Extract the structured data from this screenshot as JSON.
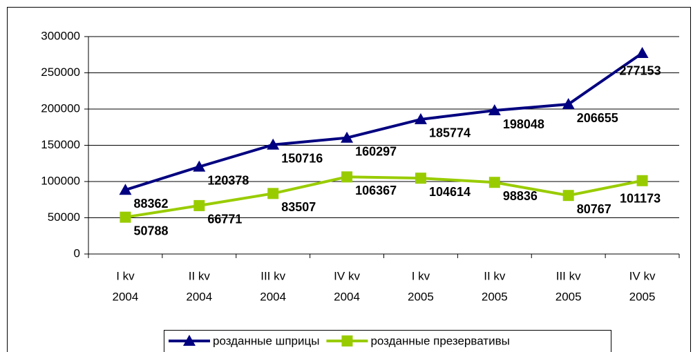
{
  "chart_data": {
    "type": "line",
    "categories": [
      [
        "I kv",
        "2004"
      ],
      [
        "II kv",
        "2004"
      ],
      [
        "III kv",
        "2004"
      ],
      [
        "IV kv",
        "2004"
      ],
      [
        "I kv",
        "2005"
      ],
      [
        "II kv",
        "2005"
      ],
      [
        "III kv",
        "2005"
      ],
      [
        "IV kv",
        "2005"
      ]
    ],
    "series": [
      {
        "name": "розданные шприцы",
        "color": "#000080",
        "marker": "triangle",
        "values": [
          88362,
          120378,
          150716,
          160297,
          185774,
          198048,
          206655,
          277153
        ]
      },
      {
        "name": "розданные презервативы",
        "color": "#99cc00",
        "marker": "square",
        "values": [
          50788,
          66771,
          83507,
          106367,
          104614,
          98836,
          80767,
          101173
        ]
      }
    ],
    "ylim": [
      0,
      300000
    ],
    "yticks": [
      0,
      50000,
      100000,
      150000,
      200000,
      250000,
      300000
    ],
    "grid": true,
    "legend": "bottom"
  }
}
